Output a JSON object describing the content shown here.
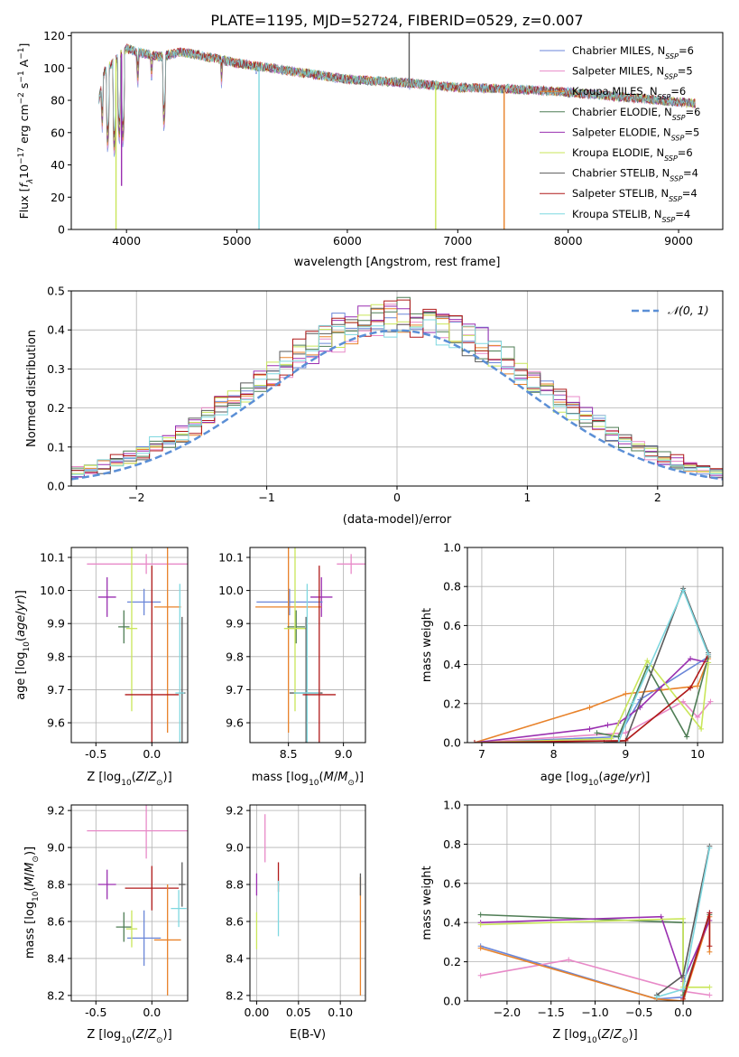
{
  "figure": {
    "title": "PLATE=1195, MJD=52724, FIBERID=0529, z=0.007"
  },
  "chart_data": [
    {
      "id": "spectrum",
      "type": "line",
      "xlabel": "wavelength [Angstrom, rest frame]",
      "ylabel": "Flux [f_λ 10^-17 erg cm^-2 s^-1 A^-1]",
      "xlim": [
        3500,
        9400
      ],
      "ylim": [
        0,
        122
      ],
      "xticks": [
        4000,
        5000,
        6000,
        7000,
        8000,
        9000
      ],
      "yticks": [
        0,
        20,
        40,
        60,
        80,
        100,
        120
      ],
      "grid": false,
      "legend_position": "top-right",
      "x_range_data": [
        3750,
        9150
      ],
      "series": [
        {
          "name": "Chabrier MILES, N_SSP=6",
          "color": "#6a86d8"
        },
        {
          "name": "Salpeter MILES, N_SSP=5",
          "color": "#e88ac8"
        },
        {
          "name": "Kroupa MILES, N_SSP=6",
          "color": "#e8822a"
        },
        {
          "name": "Chabrier ELODIE, N_SSP=6",
          "color": "#4f7d55"
        },
        {
          "name": "Salpeter ELODIE, N_SSP=5",
          "color": "#9a2fb0"
        },
        {
          "name": "Kroupa ELODIE, N_SSP=6",
          "color": "#c9e65a"
        },
        {
          "name": "Chabrier STELIB, N_SSP=4",
          "color": "#5a5a5a"
        },
        {
          "name": "Salpeter STELIB, N_SSP=4",
          "color": "#b01a1a"
        },
        {
          "name": "Kroupa STELIB, N_SSP=4",
          "color": "#7fd8e0"
        }
      ],
      "continuum": [
        [
          3750,
          80
        ],
        [
          3800,
          98
        ],
        [
          3900,
          105
        ],
        [
          4000,
          112
        ],
        [
          4100,
          110
        ],
        [
          4300,
          107
        ],
        [
          4500,
          110
        ],
        [
          4800,
          106
        ],
        [
          5000,
          103
        ],
        [
          5300,
          100
        ],
        [
          5600,
          97
        ],
        [
          6000,
          93
        ],
        [
          6500,
          91
        ],
        [
          7000,
          88
        ],
        [
          7500,
          87
        ],
        [
          8000,
          85
        ],
        [
          8500,
          82
        ],
        [
          9000,
          79
        ],
        [
          9150,
          78
        ]
      ],
      "absorption_features": [
        [
          3780,
          60
        ],
        [
          3830,
          45
        ],
        [
          3890,
          42
        ],
        [
          3934,
          50
        ],
        [
          3968,
          48
        ],
        [
          4102,
          85
        ],
        [
          4227,
          88
        ],
        [
          4340,
          58
        ],
        [
          4861,
          86
        ],
        [
          5175,
          92
        ],
        [
          5890,
          88
        ],
        [
          6563,
          85
        ]
      ],
      "spikes": [
        {
          "x": 3905,
          "y": 0
        },
        {
          "x": 3955,
          "y": 27
        },
        {
          "x": 5200,
          "y": 0
        },
        {
          "x": 6800,
          "y": 0
        },
        {
          "x": 7420,
          "y": 0
        },
        {
          "x": 6560,
          "y": 122
        }
      ]
    },
    {
      "id": "residuals",
      "type": "histogram",
      "xlabel": "(data-model)/error",
      "ylabel": "Normed distribution",
      "xlim": [
        -2.5,
        2.5
      ],
      "ylim": [
        0,
        0.5
      ],
      "xticks": [
        -2,
        -1,
        0,
        1,
        2
      ],
      "yticks": [
        0.0,
        0.1,
        0.2,
        0.3,
        0.4,
        0.5
      ],
      "grid": true,
      "bins": 50,
      "legend_position": "top-right",
      "reference_curve": {
        "name": "𝒩(0, 1)",
        "color": "#5b8fd6",
        "style": "dashed"
      },
      "series_colors": [
        "#6a86d8",
        "#e88ac8",
        "#e8822a",
        "#4f7d55",
        "#9a2fb0",
        "#c9e65a",
        "#5a5a5a",
        "#b01a1a",
        "#7fd8e0"
      ]
    },
    {
      "id": "age_vs_Z",
      "type": "errorbar",
      "xlabel": "Z [log10(Z/Z⊙)]",
      "ylabel": "age [log10(age/yr)]",
      "xlim": [
        -0.72,
        0.32
      ],
      "ylim": [
        9.54,
        10.13
      ],
      "xticks": [
        -0.5,
        0.0
      ],
      "yticks": [
        9.6,
        9.7,
        9.8,
        9.9,
        10.0,
        10.1
      ],
      "grid": true,
      "points": [
        {
          "x": -0.05,
          "xerr": 0.53,
          "y": 10.08,
          "yerr": 0.03,
          "color": "#e88ac8"
        },
        {
          "x": -0.4,
          "xerr": 0.08,
          "y": 9.98,
          "yerr": 0.06,
          "color": "#9a2fb0"
        },
        {
          "x": -0.07,
          "xerr": 0.15,
          "y": 9.965,
          "yerr": 0.04,
          "color": "#6a86d8"
        },
        {
          "x": 0.14,
          "xerr": 0.12,
          "y": 9.95,
          "yerr": 0.38,
          "color": "#e8822a"
        },
        {
          "x": -0.25,
          "xerr": 0.05,
          "y": 9.89,
          "yerr": 0.05,
          "color": "#4f7d55"
        },
        {
          "x": -0.18,
          "xerr": 0.05,
          "y": 9.885,
          "yerr": 0.25,
          "color": "#c9e65a"
        },
        {
          "x": 0.27,
          "xerr": 0.03,
          "y": 9.69,
          "yerr": 0.23,
          "color": "#5a5a5a"
        },
        {
          "x": 0.25,
          "xerr": 0.04,
          "y": 9.69,
          "yerr": 0.33,
          "color": "#7fd8e0"
        },
        {
          "x": 0.0,
          "xerr": 0.24,
          "y": 9.685,
          "yerr": 0.39,
          "color": "#b01a1a"
        }
      ]
    },
    {
      "id": "age_vs_mass",
      "type": "errorbar",
      "xlabel": "mass [log10(M/M⊙)]",
      "ylabel": "",
      "xlim": [
        8.15,
        9.2
      ],
      "ylim": [
        9.54,
        10.13
      ],
      "xticks": [
        8.5,
        9.0
      ],
      "yticks": [
        9.6,
        9.7,
        9.8,
        9.9,
        10.0,
        10.1
      ],
      "grid": true,
      "points": [
        {
          "x": 9.07,
          "xerr": 0.13,
          "y": 10.08,
          "yerr": 0.03,
          "color": "#e88ac8"
        },
        {
          "x": 8.8,
          "xerr": 0.1,
          "y": 9.98,
          "yerr": 0.06,
          "color": "#9a2fb0"
        },
        {
          "x": 8.51,
          "xerr": 0.3,
          "y": 9.965,
          "yerr": 0.04,
          "color": "#6a86d8"
        },
        {
          "x": 8.5,
          "xerr": 0.3,
          "y": 9.95,
          "yerr": 0.38,
          "color": "#e8822a"
        },
        {
          "x": 8.57,
          "xerr": 0.08,
          "y": 9.89,
          "yerr": 0.05,
          "color": "#4f7d55"
        },
        {
          "x": 8.56,
          "xerr": 0.1,
          "y": 9.885,
          "yerr": 0.25,
          "color": "#c9e65a"
        },
        {
          "x": 8.66,
          "xerr": 0.15,
          "y": 9.69,
          "yerr": 0.23,
          "color": "#5a5a5a"
        },
        {
          "x": 8.67,
          "xerr": 0.12,
          "y": 9.69,
          "yerr": 0.33,
          "color": "#7fd8e0"
        },
        {
          "x": 8.78,
          "xerr": 0.15,
          "y": 9.685,
          "yerr": 0.39,
          "color": "#b01a1a"
        }
      ]
    },
    {
      "id": "weight_vs_age",
      "type": "line",
      "xlabel": "age [log10(age/yr)]",
      "ylabel": "mass weight",
      "xlim": [
        6.8,
        10.35
      ],
      "ylim": [
        0,
        1.0
      ],
      "xticks": [
        7,
        8,
        9,
        10
      ],
      "yticks": [
        0.0,
        0.2,
        0.4,
        0.6,
        0.8,
        1.0
      ],
      "grid": true,
      "series": [
        {
          "color": "#6a86d8",
          "points": [
            [
              6.9,
              0.0
            ],
            [
              8.9,
              0.03
            ],
            [
              9.2,
              0.22
            ],
            [
              10.15,
              0.44
            ]
          ]
        },
        {
          "color": "#e88ac8",
          "points": [
            [
              6.9,
              0.0
            ],
            [
              9.0,
              0.05
            ],
            [
              9.8,
              0.21
            ],
            [
              10.0,
              0.13
            ],
            [
              10.18,
              0.21
            ]
          ]
        },
        {
          "color": "#e8822a",
          "points": [
            [
              6.9,
              0.0
            ],
            [
              8.5,
              0.18
            ],
            [
              9.0,
              0.25
            ],
            [
              9.5,
              0.27
            ],
            [
              10.0,
              0.29
            ],
            [
              10.15,
              0.43
            ]
          ]
        },
        {
          "color": "#4f7d55",
          "points": [
            [
              8.6,
              0.05
            ],
            [
              8.9,
              0.03
            ],
            [
              9.3,
              0.39
            ],
            [
              9.85,
              0.03
            ],
            [
              10.15,
              0.44
            ]
          ]
        },
        {
          "color": "#9a2fb0",
          "points": [
            [
              6.9,
              0.0
            ],
            [
              8.5,
              0.07
            ],
            [
              8.75,
              0.09
            ],
            [
              8.9,
              0.1
            ],
            [
              9.2,
              0.18
            ],
            [
              9.9,
              0.43
            ],
            [
              10.15,
              0.41
            ]
          ]
        },
        {
          "color": "#c9e65a",
          "points": [
            [
              6.9,
              0.0
            ],
            [
              8.8,
              0.02
            ],
            [
              9.3,
              0.42
            ],
            [
              10.05,
              0.07
            ],
            [
              10.15,
              0.41
            ]
          ]
        },
        {
          "color": "#5a5a5a",
          "points": [
            [
              8.7,
              0.0
            ],
            [
              9.0,
              0.01
            ],
            [
              9.8,
              0.79
            ],
            [
              10.15,
              0.46
            ]
          ]
        },
        {
          "color": "#b01a1a",
          "points": [
            [
              6.9,
              0.0
            ],
            [
              9.0,
              0.01
            ],
            [
              9.9,
              0.28
            ],
            [
              10.15,
              0.45
            ]
          ]
        },
        {
          "color": "#7fd8e0",
          "points": [
            [
              8.9,
              0.0
            ],
            [
              9.1,
              0.2
            ],
            [
              9.8,
              0.78
            ],
            [
              10.15,
              0.45
            ]
          ]
        }
      ]
    },
    {
      "id": "mass_vs_Z",
      "type": "errorbar",
      "xlabel": "Z [log10(Z/Z⊙)]",
      "ylabel": "mass [log10(M/M⊙)]",
      "xlim": [
        -0.72,
        0.32
      ],
      "ylim": [
        8.17,
        9.23
      ],
      "xticks": [
        -0.5,
        0.0
      ],
      "yticks": [
        8.2,
        8.4,
        8.6,
        8.8,
        9.0,
        9.2
      ],
      "grid": true,
      "points": [
        {
          "x": -0.05,
          "xerr": 0.53,
          "y": 9.09,
          "yerr": 0.15,
          "color": "#e88ac8"
        },
        {
          "x": -0.4,
          "xerr": 0.08,
          "y": 8.8,
          "yerr": 0.08,
          "color": "#9a2fb0"
        },
        {
          "x": 0.0,
          "xerr": 0.24,
          "y": 8.78,
          "yerr": 0.12,
          "color": "#b01a1a"
        },
        {
          "x": 0.27,
          "xerr": 0.03,
          "y": 8.8,
          "yerr": 0.12,
          "color": "#5a5a5a"
        },
        {
          "x": 0.24,
          "xerr": 0.07,
          "y": 8.67,
          "yerr": 0.1,
          "color": "#7fd8e0"
        },
        {
          "x": 0.14,
          "xerr": 0.12,
          "y": 8.5,
          "yerr": 0.3,
          "color": "#e8822a"
        },
        {
          "x": -0.07,
          "xerr": 0.15,
          "y": 8.51,
          "yerr": 0.15,
          "color": "#6a86d8"
        },
        {
          "x": -0.25,
          "xerr": 0.07,
          "y": 8.57,
          "yerr": 0.08,
          "color": "#4f7d55"
        },
        {
          "x": -0.18,
          "xerr": 0.05,
          "y": 8.56,
          "yerr": 0.1,
          "color": "#c9e65a"
        }
      ]
    },
    {
      "id": "mass_vs_ebv",
      "type": "errorbar",
      "xlabel": "E(B-V)",
      "ylabel": "",
      "xlim": [
        -0.008,
        0.13
      ],
      "ylim": [
        8.17,
        9.23
      ],
      "xticks": [
        0.0,
        0.05,
        0.1
      ],
      "yticks": [
        8.2,
        8.4,
        8.6,
        8.8,
        9.0,
        9.2
      ],
      "grid": true,
      "points": [
        {
          "x": 0.01,
          "xerr": 0.0,
          "y": 9.05,
          "yerr": 0.13,
          "color": "#e88ac8"
        },
        {
          "x": 0.0,
          "xerr": 0.0,
          "y": 8.8,
          "yerr": 0.06,
          "color": "#9a2fb0"
        },
        {
          "x": 0.0,
          "xerr": 0.0,
          "y": 8.55,
          "yerr": 0.1,
          "color": "#c9e65a"
        },
        {
          "x": 0.026,
          "xerr": 0.0,
          "y": 8.84,
          "yerr": 0.08,
          "color": "#b01a1a"
        },
        {
          "x": 0.026,
          "xerr": 0.0,
          "y": 8.67,
          "yerr": 0.15,
          "color": "#7fd8e0"
        },
        {
          "x": 0.124,
          "xerr": 0.0,
          "y": 8.52,
          "yerr": 0.32,
          "color": "#e8822a"
        },
        {
          "x": 0.124,
          "xerr": 0.0,
          "y": 8.8,
          "yerr": 0.06,
          "color": "#5a5a5a"
        }
      ]
    },
    {
      "id": "weight_vs_Z",
      "type": "line",
      "xlabel": "Z [log10(Z/Z⊙)]",
      "ylabel": "mass weight",
      "xlim": [
        -2.45,
        0.45
      ],
      "ylim": [
        0,
        1.0
      ],
      "xticks": [
        -2.0,
        -1.5,
        -1.0,
        -0.5,
        0.0
      ],
      "yticks": [
        0.0,
        0.2,
        0.4,
        0.6,
        0.8,
        1.0
      ],
      "grid": true,
      "series": [
        {
          "color": "#6a86d8",
          "points": [
            [
              -2.3,
              0.28
            ],
            [
              -0.3,
              0.01
            ],
            [
              0.0,
              0.02
            ],
            [
              0.3,
              0.45
            ]
          ]
        },
        {
          "color": "#e88ac8",
          "points": [
            [
              -2.3,
              0.13
            ],
            [
              -1.3,
              0.21
            ],
            [
              0.0,
              0.05
            ],
            [
              0.3,
              0.03
            ]
          ]
        },
        {
          "color": "#e8822a",
          "points": [
            [
              -2.3,
              0.27
            ],
            [
              -0.3,
              0.01
            ],
            [
              0.0,
              0.0
            ],
            [
              0.3,
              0.43
            ],
            [
              0.3,
              0.25
            ]
          ]
        },
        {
          "color": "#4f7d55",
          "points": [
            [
              -2.3,
              0.44
            ],
            [
              0.0,
              0.4
            ],
            [
              0.0,
              0.03
            ],
            [
              0.3,
              0.44
            ]
          ]
        },
        {
          "color": "#9a2fb0",
          "points": [
            [
              -2.3,
              0.4
            ],
            [
              -0.25,
              0.43
            ],
            [
              0.0,
              0.1
            ],
            [
              0.3,
              0.41
            ]
          ]
        },
        {
          "color": "#c9e65a",
          "points": [
            [
              -2.3,
              0.39
            ],
            [
              0.0,
              0.42
            ],
            [
              0.0,
              0.07
            ],
            [
              0.3,
              0.07
            ]
          ]
        },
        {
          "color": "#5a5a5a",
          "points": [
            [
              -0.3,
              0.03
            ],
            [
              0.0,
              0.13
            ],
            [
              0.3,
              0.79
            ]
          ]
        },
        {
          "color": "#b01a1a",
          "points": [
            [
              0.0,
              0.01
            ],
            [
              0.3,
              0.45
            ],
            [
              0.3,
              0.28
            ]
          ]
        },
        {
          "color": "#7fd8e0",
          "points": [
            [
              -0.3,
              0.02
            ],
            [
              0.0,
              0.06
            ],
            [
              0.3,
              0.78
            ]
          ]
        }
      ]
    }
  ]
}
